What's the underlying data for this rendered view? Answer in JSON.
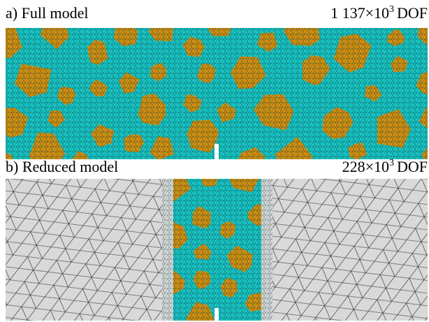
{
  "panel_a": {
    "label": "a) Full model",
    "dof": {
      "mantissa": "1 137×10",
      "exponent": "3",
      "unit": "DOF"
    }
  },
  "panel_b": {
    "label": "b) Reduced model",
    "dof": {
      "mantissa": "228×10",
      "exponent": "3",
      "unit": "DOF"
    }
  }
}
